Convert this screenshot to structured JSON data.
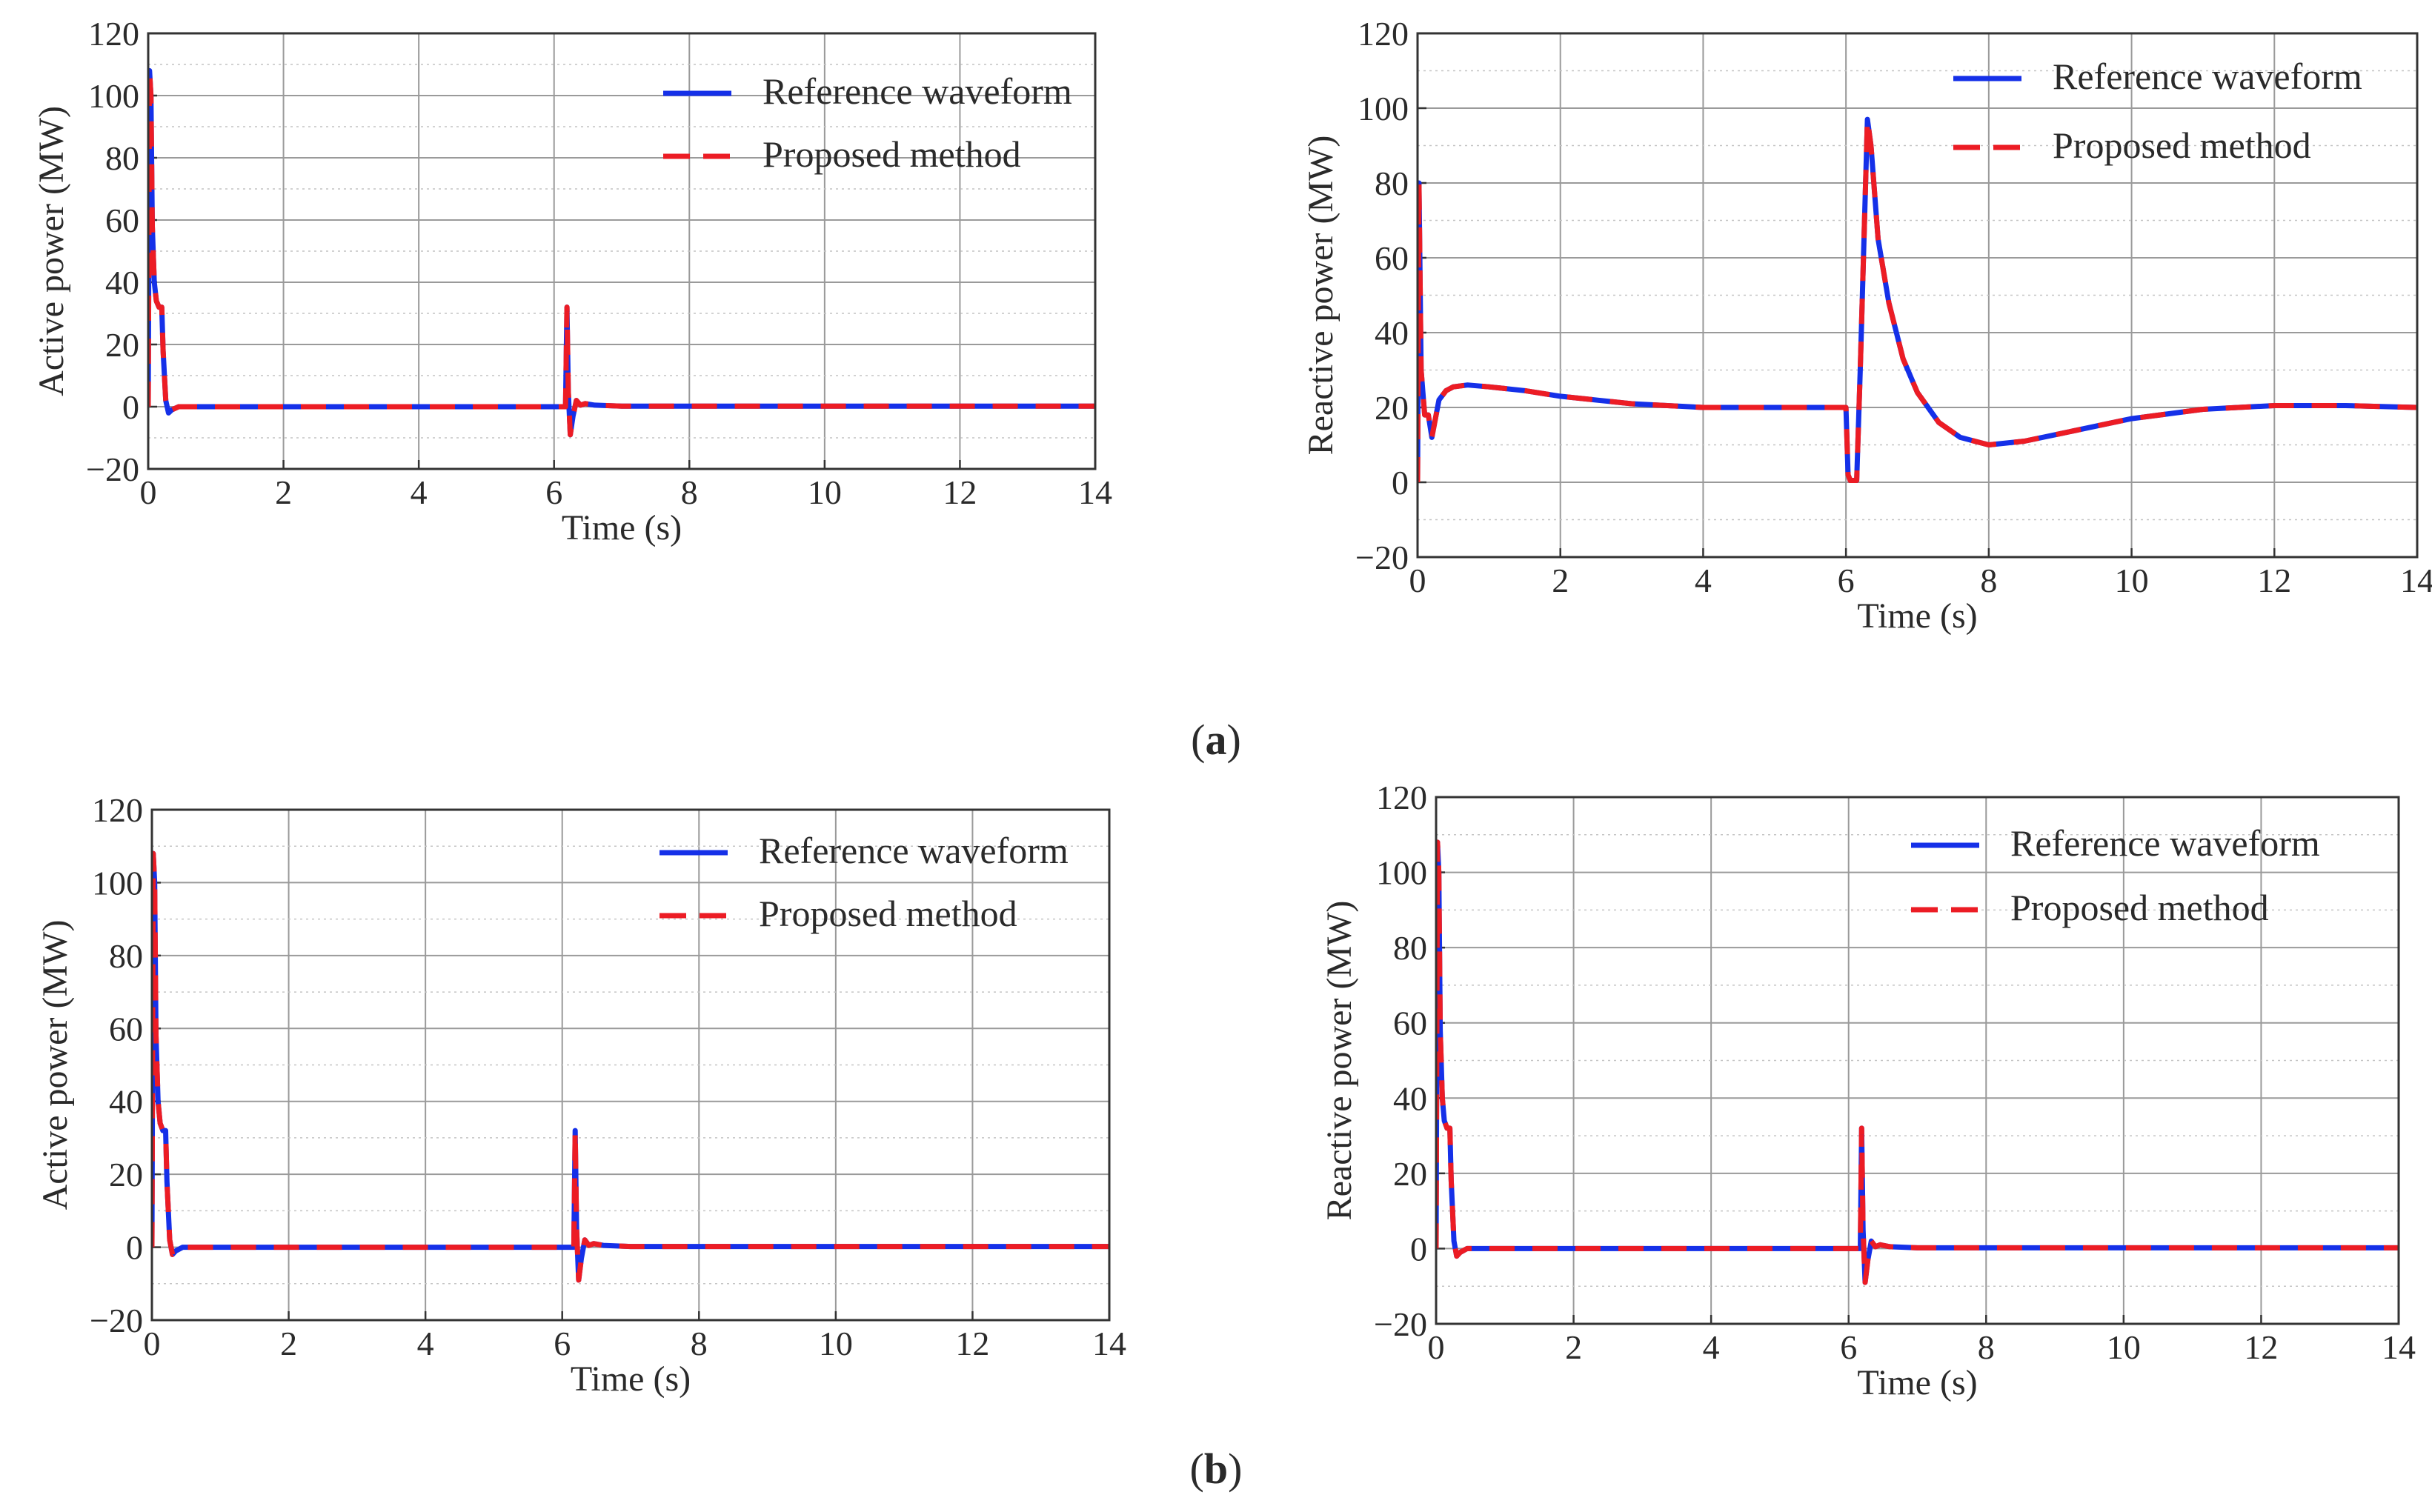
{
  "colors": {
    "reference": "#1530e8",
    "proposed": "#ec1c24",
    "grid": "#9a9a9a",
    "frame": "#333333"
  },
  "captions": {
    "a": "(a)",
    "b": "(b)"
  },
  "chart_data": [
    {
      "id": "a-active",
      "type": "line",
      "title": "",
      "xlabel": "Time (s)",
      "ylabel": "Active power (MW)",
      "xlim": [
        0,
        14
      ],
      "ylim": [
        -20,
        120
      ],
      "xticks": [
        0,
        2,
        4,
        6,
        8,
        10,
        12,
        14
      ],
      "yticks": [
        -20,
        0,
        20,
        40,
        60,
        80,
        100,
        120
      ],
      "grid": true,
      "legend_position": "top-right",
      "series": [
        {
          "name": "Reference waveform",
          "style": "solid",
          "x": [
            0,
            0.02,
            0.04,
            0.06,
            0.09,
            0.12,
            0.16,
            0.2,
            0.22,
            0.26,
            0.3,
            0.35,
            0.45,
            0.6,
            1,
            6.1,
            6.17,
            6.19,
            6.21,
            6.24,
            6.28,
            6.33,
            6.39,
            6.46,
            6.6,
            7,
            14
          ],
          "y": [
            0,
            108,
            100,
            58,
            40,
            34,
            32,
            32,
            18,
            2,
            -2,
            -1,
            0,
            0,
            0,
            0,
            0,
            32,
            5,
            -9,
            -3,
            2,
            0.5,
            1,
            0.5,
            0.2,
            0.2
          ]
        },
        {
          "name": "Proposed method",
          "style": "dashed",
          "x": [
            0,
            0.02,
            0.04,
            0.06,
            0.09,
            0.12,
            0.16,
            0.2,
            0.22,
            0.26,
            0.3,
            0.35,
            0.45,
            0.6,
            1,
            6.1,
            6.17,
            6.19,
            6.21,
            6.24,
            6.28,
            6.33,
            6.39,
            6.46,
            6.6,
            7,
            14
          ],
          "y": [
            0,
            108,
            100,
            58,
            40,
            34,
            32,
            32,
            18,
            2,
            -2,
            -1,
            0,
            0,
            0,
            0,
            0,
            32,
            5,
            -9,
            -3,
            2,
            0.5,
            1,
            0.5,
            0.2,
            0.2
          ]
        }
      ]
    },
    {
      "id": "a-reactive",
      "type": "line",
      "title": "",
      "xlabel": "Time (s)",
      "ylabel": "Reactive power (MW)",
      "xlim": [
        0,
        14
      ],
      "ylim": [
        -20,
        120
      ],
      "xticks": [
        0,
        2,
        4,
        6,
        8,
        10,
        12,
        14
      ],
      "yticks": [
        -20,
        0,
        20,
        40,
        60,
        80,
        100,
        120
      ],
      "grid": true,
      "legend_position": "top-right",
      "series": [
        {
          "name": "Reference waveform",
          "style": "solid",
          "x": [
            0,
            0.02,
            0.05,
            0.1,
            0.15,
            0.2,
            0.25,
            0.3,
            0.4,
            0.5,
            0.7,
            1,
            1.5,
            2,
            3,
            4,
            5,
            6,
            6.03,
            6.06,
            6.1,
            6.15,
            6.2,
            6.3,
            6.35,
            6.45,
            6.6,
            6.8,
            7,
            7.3,
            7.6,
            8,
            8.5,
            9,
            10,
            11,
            12,
            13,
            14
          ],
          "y": [
            0,
            80,
            30,
            18,
            18,
            12,
            17,
            22,
            24.5,
            25.5,
            26,
            25.5,
            24.5,
            23,
            21,
            20,
            20,
            20,
            2,
            0.5,
            0.5,
            0.5,
            30,
            97,
            90,
            65,
            48,
            33,
            24,
            16,
            12,
            10,
            11,
            13,
            17,
            19.5,
            20.5,
            20.5,
            20
          ]
        },
        {
          "name": "Proposed method",
          "style": "dashed",
          "x": [
            0,
            0.02,
            0.05,
            0.1,
            0.15,
            0.2,
            0.25,
            0.3,
            0.4,
            0.5,
            0.7,
            1,
            1.5,
            2,
            3,
            4,
            5,
            6,
            6.03,
            6.06,
            6.1,
            6.15,
            6.2,
            6.3,
            6.35,
            6.45,
            6.6,
            6.8,
            7,
            7.3,
            7.6,
            8,
            8.5,
            9,
            10,
            11,
            12,
            13,
            14
          ],
          "y": [
            0,
            80,
            30,
            18,
            18,
            12,
            17,
            22,
            24.5,
            25.5,
            26,
            25.5,
            24.5,
            23,
            21,
            20,
            20,
            20,
            2,
            0.5,
            0.5,
            0.5,
            30,
            97,
            90,
            65,
            48,
            33,
            24,
            16,
            12,
            10,
            11,
            13,
            17,
            19.5,
            20.5,
            20.5,
            20
          ]
        }
      ]
    },
    {
      "id": "b-active",
      "type": "line",
      "title": "",
      "xlabel": "Time (s)",
      "ylabel": "Active power (MW)",
      "xlim": [
        0,
        14
      ],
      "ylim": [
        -20,
        120
      ],
      "xticks": [
        0,
        2,
        4,
        6,
        8,
        10,
        12,
        14
      ],
      "yticks": [
        -20,
        0,
        20,
        40,
        60,
        80,
        100,
        120
      ],
      "grid": true,
      "legend_position": "top-right",
      "series": [
        {
          "name": "Reference waveform",
          "style": "solid",
          "x": [
            0,
            0.02,
            0.04,
            0.06,
            0.09,
            0.12,
            0.16,
            0.2,
            0.22,
            0.26,
            0.3,
            0.35,
            0.45,
            0.6,
            1,
            6.1,
            6.17,
            6.19,
            6.21,
            6.24,
            6.28,
            6.33,
            6.39,
            6.46,
            6.6,
            7,
            14
          ],
          "y": [
            0,
            108,
            100,
            58,
            40,
            34,
            32,
            32,
            18,
            2,
            -2,
            -1,
            0,
            0,
            0,
            0,
            0,
            32,
            5,
            -9,
            -3,
            2,
            0.5,
            1,
            0.5,
            0.2,
            0.2
          ]
        },
        {
          "name": "Proposed method",
          "style": "dashed",
          "x": [
            0,
            0.02,
            0.04,
            0.06,
            0.09,
            0.12,
            0.16,
            0.2,
            0.22,
            0.26,
            0.3,
            0.35,
            0.45,
            0.6,
            1,
            6.1,
            6.17,
            6.19,
            6.21,
            6.24,
            6.28,
            6.33,
            6.39,
            6.46,
            6.6,
            7,
            14
          ],
          "y": [
            0,
            108,
            100,
            58,
            40,
            34,
            32,
            32,
            18,
            2,
            -2,
            -1,
            0,
            0,
            0,
            0,
            0,
            32,
            5,
            -9,
            -3,
            2,
            0.5,
            1,
            0.5,
            0.2,
            0.2
          ]
        }
      ]
    },
    {
      "id": "b-reactive",
      "type": "line",
      "title": "",
      "xlabel": "Time (s)",
      "ylabel": "Reactive power (MW)",
      "xlim": [
        0,
        14
      ],
      "ylim": [
        -20,
        120
      ],
      "xticks": [
        0,
        2,
        4,
        6,
        8,
        10,
        12,
        14
      ],
      "yticks": [
        -20,
        0,
        20,
        40,
        60,
        80,
        100,
        120
      ],
      "grid": true,
      "legend_position": "top-right",
      "series": [
        {
          "name": "Reference waveform",
          "style": "solid",
          "x": [
            0,
            0.02,
            0.04,
            0.06,
            0.09,
            0.12,
            0.16,
            0.2,
            0.22,
            0.26,
            0.3,
            0.35,
            0.45,
            0.6,
            1,
            6.1,
            6.17,
            6.19,
            6.21,
            6.24,
            6.28,
            6.33,
            6.39,
            6.46,
            6.6,
            7,
            14
          ],
          "y": [
            0,
            108,
            100,
            58,
            40,
            34,
            32,
            32,
            18,
            2,
            -2,
            -1,
            0,
            0,
            0,
            0,
            0,
            32,
            5,
            -9,
            -3,
            2,
            0.5,
            1,
            0.5,
            0.2,
            0.2
          ]
        },
        {
          "name": "Proposed method",
          "style": "dashed",
          "x": [
            0,
            0.02,
            0.04,
            0.06,
            0.09,
            0.12,
            0.16,
            0.2,
            0.22,
            0.26,
            0.3,
            0.35,
            0.45,
            0.6,
            1,
            6.1,
            6.17,
            6.19,
            6.21,
            6.24,
            6.28,
            6.33,
            6.39,
            6.46,
            6.6,
            7,
            14
          ],
          "y": [
            0,
            108,
            100,
            58,
            40,
            34,
            32,
            32,
            18,
            2,
            -2,
            -1,
            0,
            0,
            0,
            0,
            0,
            32,
            5,
            -9,
            -3,
            2,
            0.5,
            1,
            0.5,
            0.2,
            0.2
          ]
        }
      ]
    }
  ]
}
